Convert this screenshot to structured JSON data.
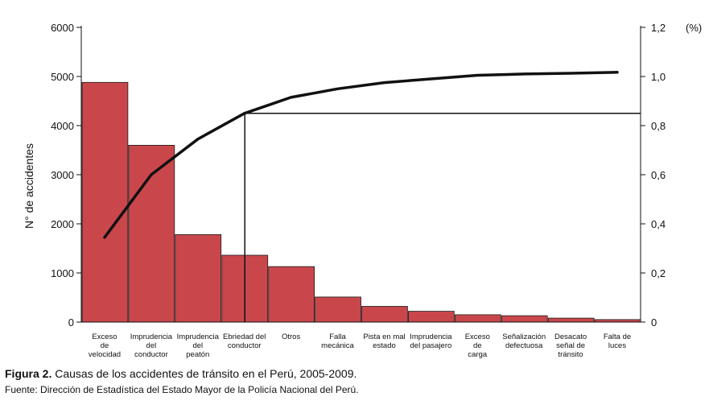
{
  "chart_data": {
    "type": "bar",
    "categories": [
      [
        "Exceso",
        "de",
        "velocidad"
      ],
      [
        "Imprudencia",
        "del",
        "conductor"
      ],
      [
        "Imprudencia",
        "del",
        "peatón"
      ],
      [
        "Ebriedad del",
        "conductor"
      ],
      [
        "Otros"
      ],
      [
        "Falla",
        "mecánica"
      ],
      [
        "Pista en mal",
        "estado"
      ],
      [
        "Imprudencia",
        "del pasajero"
      ],
      [
        "Exceso",
        "de",
        "carga"
      ],
      [
        "Señalización",
        "defectuosa"
      ],
      [
        "Desacato",
        "señal de",
        "tránsito"
      ],
      [
        "Falta de",
        "luces"
      ]
    ],
    "series": [
      {
        "type": "bar",
        "values": [
          4880,
          3600,
          1780,
          1360,
          1130,
          510,
          320,
          220,
          150,
          130,
          80,
          50
        ],
        "color": "#c9474b"
      },
      {
        "type": "line",
        "axis": "right",
        "values": [
          0.345,
          0.6,
          0.745,
          0.85,
          0.915,
          0.95,
          0.975,
          0.99,
          1.005,
          1.01,
          1.013,
          1.017
        ],
        "color": "#111111"
      }
    ],
    "reference_line": {
      "x_index": 3.5,
      "y_right": 0.85
    },
    "ylabel": "N° de accidentes",
    "ylim": [
      0,
      6000
    ],
    "yticks": [
      "0",
      "1000",
      "2000",
      "3000",
      "4000",
      "5000",
      "6000"
    ],
    "y2lim": [
      0,
      1.2
    ],
    "y2ticks": [
      "0",
      "0,2",
      "0,4",
      "0,6",
      "0,8",
      "1,0",
      "1,2"
    ],
    "y2unit": "(%)",
    "grid": false
  },
  "caption": {
    "prefix": "Figura 2.",
    "text": " Causas de los accidentes de tránsito en el Perú, 2005-2009."
  },
  "source": "Fuente: Dirección de Estadística del Estado Mayor de la Policía Nacional del Perú."
}
